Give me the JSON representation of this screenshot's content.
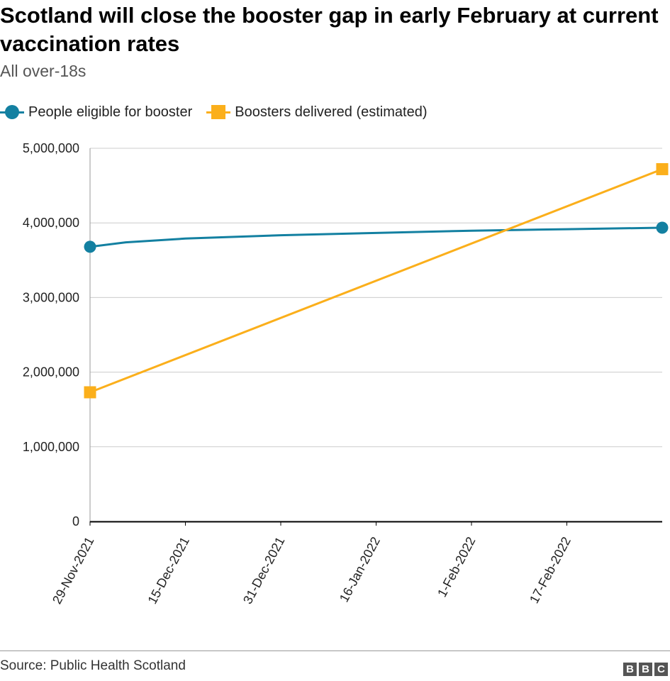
{
  "chart_data": {
    "type": "line",
    "title": "Scotland will close the booster gap in early February at current vaccination rates",
    "subtitle": "All over-18s",
    "legend_position": "top-left",
    "grid": true,
    "ylim": [
      0,
      5000000
    ],
    "yticks": [
      0,
      1000000,
      2000000,
      3000000,
      4000000,
      5000000
    ],
    "ytick_labels": [
      "0",
      "1,000,000",
      "2,000,000",
      "3,000,000",
      "4,000,000",
      "5,000,000"
    ],
    "xlim": [
      "2021-11-29",
      "2022-03-05"
    ],
    "xtick_dates": [
      "2021-11-29",
      "2021-12-15",
      "2021-12-31",
      "2022-01-16",
      "2022-02-01",
      "2022-02-17"
    ],
    "xtick_labels": [
      "29-Nov-2021",
      "15-Dec-2021",
      "31-Dec-2021",
      "16-Jan-2022",
      "1-Feb-2022",
      "17-Feb-2022"
    ],
    "series": [
      {
        "name": "People eligible for booster",
        "color": "#1380a1",
        "marker": "circle",
        "points": [
          {
            "x": "2021-11-29",
            "y": 3680000
          },
          {
            "x": "2021-12-05",
            "y": 3740000
          },
          {
            "x": "2021-12-15",
            "y": 3790000
          },
          {
            "x": "2021-12-31",
            "y": 3835000
          },
          {
            "x": "2022-01-16",
            "y": 3865000
          },
          {
            "x": "2022-02-01",
            "y": 3895000
          },
          {
            "x": "2022-02-17",
            "y": 3915000
          },
          {
            "x": "2022-03-05",
            "y": 3935000
          }
        ]
      },
      {
        "name": "Boosters delivered (estimated)",
        "color": "#fbaf1b",
        "marker": "square",
        "points": [
          {
            "x": "2021-11-29",
            "y": 1730000
          },
          {
            "x": "2022-03-05",
            "y": 4720000
          }
        ]
      }
    ]
  },
  "footer": {
    "source": "Source: Public Health Scotland",
    "logo_letters": [
      "B",
      "B",
      "C"
    ]
  }
}
